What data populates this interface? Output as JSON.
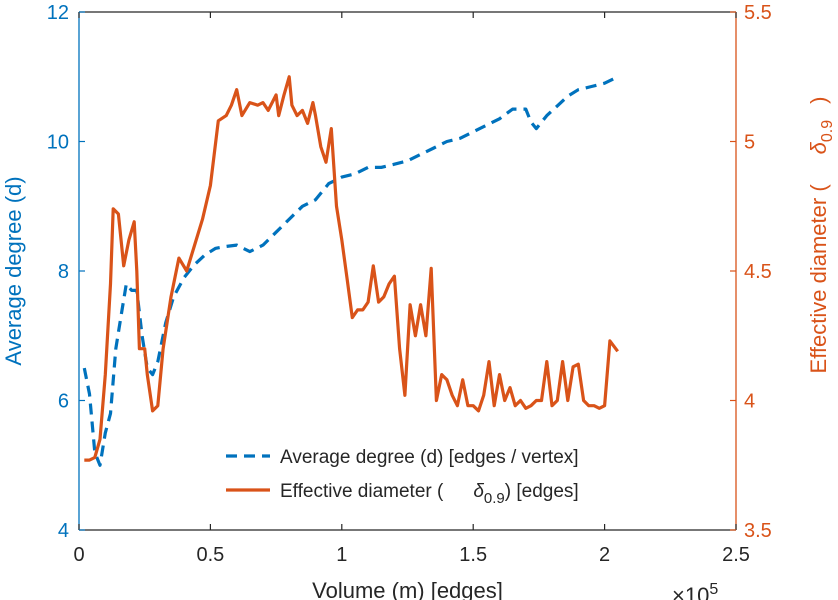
{
  "chart_data": {
    "type": "line",
    "xlabel": "Volume (m) [edges]",
    "x_exponent": "×10",
    "x_exponent_power": "5",
    "ylabel_left": "Average degree (d)",
    "ylabel_right": "Effective diameter (",
    "ylabel_right_symbol": "δ",
    "ylabel_right_sub": "0.9",
    "ylabel_right_close": ")",
    "xlim": [
      0,
      250000
    ],
    "ylim_left": [
      4,
      12
    ],
    "ylim_right": [
      3.5,
      5.5
    ],
    "x_ticks": [
      0,
      50000,
      100000,
      150000,
      200000,
      250000
    ],
    "x_tick_labels": [
      "0",
      "0.5",
      "1",
      "1.5",
      "2",
      "2.5"
    ],
    "y_left_ticks": [
      4,
      6,
      8,
      10,
      12
    ],
    "y_left_tick_labels": [
      "4",
      "6",
      "8",
      "10",
      "12"
    ],
    "y_right_ticks": [
      3.5,
      4,
      4.5,
      5,
      5.5
    ],
    "y_right_tick_labels": [
      "3.5",
      "4",
      "4.5",
      "5",
      "5.5"
    ],
    "grid": false,
    "legend_position": "bottom-center",
    "legend": {
      "entry1": "Average degree (d) [edges / vertex]",
      "entry2_prefix": "Effective diameter (",
      "entry2_symbol": "δ",
      "entry2_sub": "0.9",
      "entry2_suffix": ") [edges]"
    },
    "colors": {
      "left": "#0072BD",
      "right": "#D95319",
      "axis": "#262626"
    },
    "series": [
      {
        "axis": "left",
        "style": "dashed",
        "x": [
          2000,
          4000,
          6000,
          8000,
          10000,
          12000,
          14000,
          16000,
          18000,
          20000,
          22000,
          24000,
          26000,
          28000,
          30000,
          33000,
          36000,
          40000,
          44000,
          48000,
          52000,
          56000,
          60000,
          65000,
          70000,
          75000,
          80000,
          85000,
          90000,
          95000,
          100000,
          105000,
          110000,
          115000,
          120000,
          125000,
          130000,
          135000,
          140000,
          145000,
          150000,
          155000,
          160000,
          165000,
          170000,
          172000,
          174000,
          178000,
          182000,
          186000,
          190000,
          195000,
          200000,
          205000
        ],
        "values": [
          6.5,
          6.1,
          5.2,
          5.0,
          5.5,
          5.8,
          6.8,
          7.3,
          7.8,
          7.7,
          7.7,
          7.0,
          6.5,
          6.4,
          6.6,
          7.2,
          7.6,
          7.9,
          8.1,
          8.25,
          8.35,
          8.38,
          8.4,
          8.3,
          8.4,
          8.6,
          8.8,
          9.0,
          9.1,
          9.35,
          9.45,
          9.5,
          9.6,
          9.6,
          9.65,
          9.7,
          9.8,
          9.9,
          10.0,
          10.05,
          10.15,
          10.25,
          10.35,
          10.5,
          10.5,
          10.3,
          10.2,
          10.4,
          10.55,
          10.7,
          10.8,
          10.85,
          10.9,
          11.0
        ]
      },
      {
        "axis": "right",
        "style": "solid",
        "x": [
          2000,
          4000,
          6000,
          8000,
          10000,
          12000,
          13000,
          15000,
          17000,
          19000,
          21000,
          22000,
          23000,
          25000,
          26000,
          28000,
          30000,
          32000,
          35000,
          38000,
          41000,
          44000,
          47000,
          50000,
          53000,
          56000,
          58000,
          60000,
          62000,
          65000,
          68000,
          70000,
          72000,
          75000,
          76000,
          78000,
          80000,
          81000,
          83000,
          85000,
          87000,
          89000,
          90000,
          92000,
          94000,
          96000,
          98000,
          100000,
          102000,
          104000,
          106000,
          108000,
          110000,
          112000,
          114000,
          116000,
          118000,
          120000,
          122000,
          124000,
          126000,
          128000,
          130000,
          132000,
          134000,
          136000,
          138000,
          140000,
          142000,
          144000,
          146000,
          148000,
          150000,
          152000,
          154000,
          156000,
          158000,
          160000,
          162000,
          164000,
          166000,
          168000,
          170000,
          172000,
          174000,
          176000,
          178000,
          180000,
          182000,
          184000,
          186000,
          188000,
          190000,
          192000,
          194000,
          196000,
          198000,
          200000,
          202000,
          205000
        ],
        "values": [
          3.77,
          3.77,
          3.78,
          3.85,
          4.1,
          4.45,
          4.74,
          4.72,
          4.52,
          4.62,
          4.69,
          4.5,
          4.2,
          4.2,
          4.1,
          3.96,
          3.98,
          4.2,
          4.4,
          4.55,
          4.5,
          4.6,
          4.7,
          4.83,
          5.08,
          5.1,
          5.14,
          5.2,
          5.1,
          5.15,
          5.14,
          5.15,
          5.12,
          5.18,
          5.1,
          5.18,
          5.25,
          5.14,
          5.1,
          5.12,
          5.07,
          5.15,
          5.1,
          4.98,
          4.92,
          5.05,
          4.75,
          4.62,
          4.47,
          4.32,
          4.35,
          4.35,
          4.38,
          4.52,
          4.38,
          4.4,
          4.45,
          4.48,
          4.2,
          4.02,
          4.37,
          4.25,
          4.37,
          4.25,
          4.51,
          4.0,
          4.1,
          4.08,
          4.02,
          3.98,
          4.08,
          3.98,
          3.98,
          3.96,
          4.02,
          4.15,
          3.98,
          4.1,
          4.0,
          4.05,
          3.98,
          4.0,
          3.97,
          3.98,
          4.0,
          4.0,
          4.15,
          3.98,
          4.0,
          4.15,
          4.0,
          4.13,
          4.14,
          4.0,
          3.98,
          3.98,
          3.97,
          3.98,
          4.23,
          4.19
        ]
      }
    ]
  }
}
